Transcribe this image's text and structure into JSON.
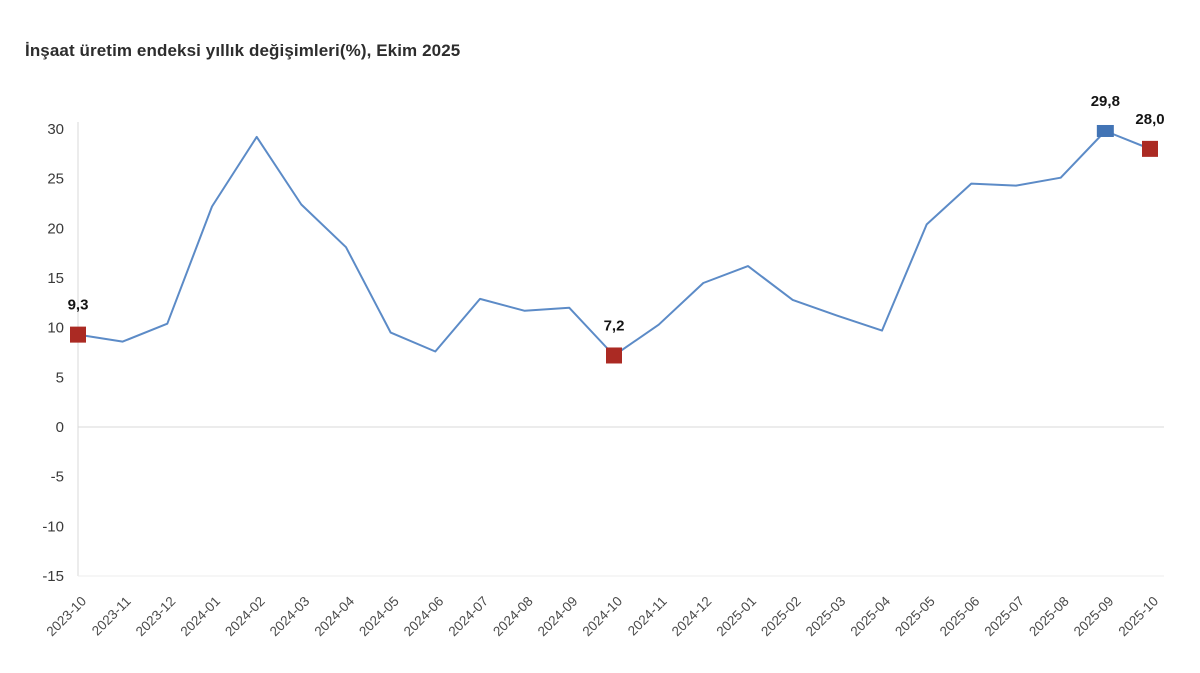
{
  "chart_data": {
    "type": "line",
    "title": "İnşaat üretim endeksi yıllık değişimleri(%), Ekim 2025",
    "categories": [
      "2023-10",
      "2023-11",
      "2023-12",
      "2024-01",
      "2024-02",
      "2024-03",
      "2024-04",
      "2024-05",
      "2024-06",
      "2024-07",
      "2024-08",
      "2024-09",
      "2024-10",
      "2024-11",
      "2024-12",
      "2025-01",
      "2025-02",
      "2025-03",
      "2025-04",
      "2025-05",
      "2025-06",
      "2025-07",
      "2025-08",
      "2025-09",
      "2025-10"
    ],
    "values": [
      9.3,
      8.6,
      10.4,
      22.2,
      29.2,
      22.4,
      18.1,
      9.5,
      7.6,
      12.9,
      11.7,
      12.0,
      7.2,
      10.3,
      14.5,
      16.2,
      12.8,
      11.2,
      9.7,
      20.4,
      24.5,
      24.3,
      25.1,
      29.8,
      28.0
    ],
    "xlabel": "",
    "ylabel": "",
    "ylim": [
      -15,
      30
    ],
    "yticks": [
      30,
      25,
      20,
      15,
      10,
      5,
      0,
      -5,
      -10,
      -15
    ],
    "grid": "zero-line-only",
    "legend": "none",
    "line_color": "#5c8bc7",
    "axis_color": "#d9d9d9",
    "baseline_color": "#ededed",
    "marked_points": [
      {
        "index": 0,
        "label": "9,3",
        "color": "#ab2a23",
        "shape": "square"
      },
      {
        "index": 12,
        "label": "7,2",
        "color": "#ab2a23",
        "shape": "square"
      },
      {
        "index": 23,
        "label": "29,8",
        "color": "#4274b5",
        "shape": "rect"
      },
      {
        "index": 24,
        "label": "28,0",
        "color": "#ab2a23",
        "shape": "square"
      }
    ]
  }
}
